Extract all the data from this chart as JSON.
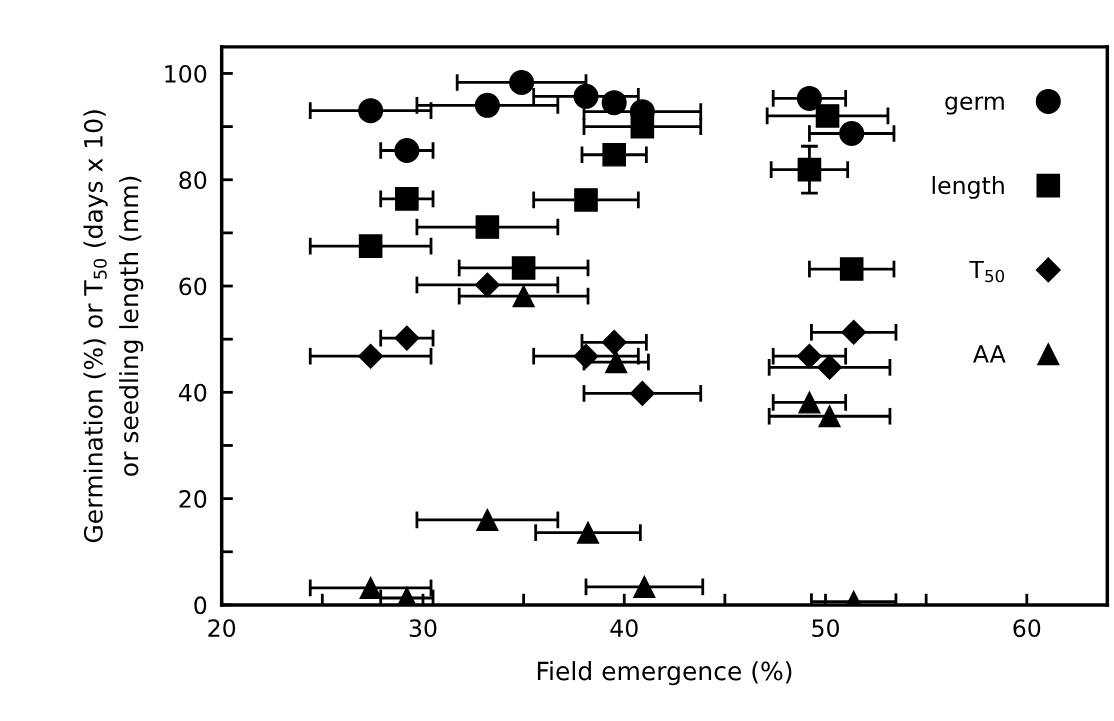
{
  "chart_data": {
    "type": "scatter",
    "xlabel": "Field emergence (%)",
    "ylabel": "Germination (%) or T$_{50}$ (days x 10)\nor seedling length (mm)",
    "xlim": [
      20,
      64
    ],
    "ylim": [
      0,
      105
    ],
    "xticks": [
      20,
      {
        "value": 25,
        "label": null
      },
      30,
      {
        "value": 35,
        "label": null
      },
      40,
      {
        "value": 45,
        "label": null
      },
      50,
      {
        "value": 55,
        "label": null
      },
      60
    ],
    "yticks": [
      0,
      {
        "value": 10,
        "label": null
      },
      20,
      {
        "value": 30,
        "label": null
      },
      40,
      {
        "value": 50,
        "label": null
      },
      60,
      {
        "value": 70,
        "label": null
      },
      80,
      {
        "value": 90,
        "label": null
      },
      100
    ],
    "grid": false,
    "legend": "top right",
    "series": [
      {
        "name": "germ",
        "color": "#000000",
        "marker": "circle",
        "x": [
          27.4,
          29.2,
          33.2,
          34.9,
          38.1,
          39.5,
          40.9,
          49.2,
          51.3
        ],
        "values": [
          93.0,
          85.5,
          94.0,
          98.3,
          95.7,
          94.5,
          92.8,
          95.3,
          88.7
        ],
        "xerrors": [
          3,
          1.3,
          3.5,
          3.2,
          2.6,
          null,
          2.9,
          1.8,
          2.1
        ]
      },
      {
        "name": "length",
        "color": "#000000",
        "marker": "square",
        "x": [
          27.4,
          29.2,
          33.2,
          35.0,
          38.1,
          39.5,
          40.9,
          49.2,
          50.1,
          51.3
        ],
        "values": [
          67.5,
          76.4,
          71.1,
          63.4,
          76.2,
          84.7,
          90.0,
          81.9,
          92.0,
          63.2
        ],
        "xerrors": [
          3,
          1.3,
          3.5,
          3.2,
          2.6,
          1.6,
          2.9,
          1.9,
          3,
          2.1
        ],
        "errors": [
          null,
          null,
          null,
          null,
          null,
          null,
          null,
          4.4,
          null,
          null
        ]
      },
      {
        "name": "T$_{50}$",
        "color": "#000000",
        "marker": "diamond",
        "x": [
          27.4,
          29.2,
          33.2,
          38.1,
          39.5,
          40.9,
          49.2,
          50.2,
          51.4
        ],
        "values": [
          46.8,
          50.2,
          60.2,
          46.8,
          49.4,
          39.8,
          46.8,
          44.7,
          51.3
        ],
        "xerrors": [
          3,
          1.3,
          3.5,
          2.6,
          1.6,
          2.9,
          1.8,
          3,
          2.1
        ]
      },
      {
        "name": "AA",
        "color": "#000000",
        "marker": "triangle",
        "x": [
          27.4,
          29.2,
          33.2,
          35.0,
          38.2,
          39.6,
          41.0,
          49.2,
          50.2,
          51.4
        ],
        "values": [
          3.2,
          1.3,
          16.0,
          58.1,
          13.6,
          45.7,
          3.4,
          38.1,
          35.5,
          0.6
        ],
        "xerrors": [
          3,
          1.3,
          3.5,
          3.2,
          2.6,
          1.6,
          2.9,
          1.8,
          3,
          2.1
        ]
      }
    ]
  }
}
